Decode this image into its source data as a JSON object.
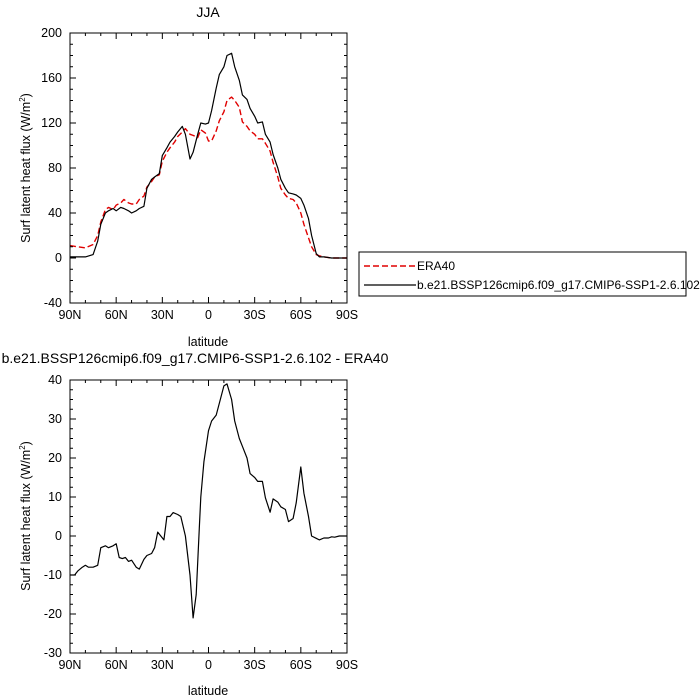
{
  "chart_data": [
    {
      "type": "line",
      "title": "JJA",
      "xlabel": "latitude",
      "ylabel": "Surf latent heat flux (W/m",
      "ylabel_sup": "2",
      "ylabel_close": ")",
      "xlim": [
        90,
        -90
      ],
      "ylim": [
        -40,
        200
      ],
      "xticks": [
        90,
        60,
        30,
        0,
        -30,
        -60,
        -90
      ],
      "xtick_labels": [
        "90N",
        "60N",
        "30N",
        "0",
        "30S",
        "60S",
        "90S"
      ],
      "yticks": [
        -40,
        0,
        40,
        80,
        120,
        160,
        200
      ],
      "ytick_labels": [
        "-40",
        "0",
        "40",
        "80",
        "120",
        "160",
        "200"
      ],
      "legend_position": "right",
      "x": [
        90,
        85,
        80,
        75,
        72,
        70,
        67,
        65,
        62,
        60,
        57,
        55,
        52,
        50,
        47,
        45,
        42,
        40,
        37,
        35,
        32,
        30,
        27,
        25,
        22,
        20,
        17,
        15,
        12,
        10,
        7,
        5,
        2,
        0,
        -2,
        -5,
        -7,
        -10,
        -12,
        -15,
        -17,
        -20,
        -22,
        -25,
        -27,
        -30,
        -32,
        -35,
        -37,
        -40,
        -42,
        -45,
        -47,
        -50,
        -52,
        -55,
        -57,
        -60,
        -62,
        -65,
        -67,
        -70,
        -72,
        -75,
        -80,
        -85,
        -90
      ],
      "series": [
        {
          "name": "ERA40",
          "color": "#e00000",
          "dash": "dashed",
          "values": [
            11,
            10,
            9,
            12,
            20,
            32,
            43,
            45,
            43,
            47,
            49,
            52,
            49,
            48,
            48,
            52,
            55,
            63,
            68,
            72,
            74,
            86,
            94,
            98,
            103,
            108,
            112,
            115,
            110,
            109,
            107,
            114,
            111,
            104,
            104,
            113,
            122,
            130,
            140,
            143,
            140,
            134,
            121,
            117,
            113,
            110,
            106,
            106,
            102,
            95,
            85,
            72,
            62,
            56,
            53,
            52,
            49,
            40,
            30,
            18,
            10,
            3,
            2,
            1,
            0,
            0,
            0
          ]
        },
        {
          "name": "b.e21.BSSP126cmip6.f09_g17.CMIP6-SSP1-2.6.102",
          "color": "#000000",
          "dash": "solid",
          "values": [
            1,
            1,
            1,
            3,
            15,
            30,
            40,
            42,
            44,
            42,
            45,
            44,
            42,
            40,
            42,
            44,
            46,
            62,
            70,
            72,
            75,
            91,
            98,
            103,
            108,
            112,
            117,
            110,
            88,
            94,
            110,
            120,
            119,
            120,
            131,
            151,
            163,
            170,
            180,
            182,
            170,
            158,
            145,
            141,
            133,
            126,
            120,
            121,
            110,
            103,
            92,
            80,
            70,
            62,
            58,
            57,
            56,
            53,
            47,
            35,
            20,
            4,
            1,
            1,
            0,
            0,
            0
          ]
        }
      ]
    },
    {
      "type": "line",
      "title": "b.e21.BSSP126cmip6.f09_g17.CMIP6-SSP1-2.6.102 - ERA40",
      "xlabel": "latitude",
      "ylabel": "Surf latent heat flux (W/m",
      "ylabel_sup": "2",
      "ylabel_close": ")",
      "xlim": [
        90,
        -90
      ],
      "ylim": [
        -30,
        40
      ],
      "xticks": [
        90,
        60,
        30,
        0,
        -30,
        -60,
        -90
      ],
      "xtick_labels": [
        "90N",
        "60N",
        "30N",
        "0",
        "30S",
        "60S",
        "90S"
      ],
      "yticks": [
        -30,
        -20,
        -10,
        0,
        10,
        20,
        30,
        40
      ],
      "ytick_labels": [
        "-30",
        "-20",
        "-10",
        "0",
        "10",
        "20",
        "30",
        "40"
      ],
      "x": [
        90,
        87,
        85,
        82,
        80,
        78,
        75,
        72,
        70,
        67,
        65,
        62,
        60,
        58,
        56,
        54,
        52,
        50,
        47,
        45,
        42,
        40,
        37,
        35,
        33,
        31,
        29,
        27,
        25,
        23,
        20,
        18,
        15,
        12,
        10,
        8,
        6,
        5,
        3,
        0,
        -2,
        -5,
        -7,
        -10,
        -12,
        -15,
        -17,
        -20,
        -22,
        -25,
        -27,
        -30,
        -32,
        -35,
        -37,
        -40,
        -42,
        -45,
        -47,
        -50,
        -52,
        -55,
        -57,
        -60,
        -62,
        -65,
        -67,
        -70,
        -72,
        -75,
        -78,
        -80,
        -82,
        -85,
        -88,
        -90
      ],
      "series": [
        {
          "name": "",
          "color": "#000000",
          "dash": "solid",
          "values": [
            -10,
            -10,
            -9,
            -8,
            -7.5,
            -8,
            -8,
            -7.5,
            -3,
            -2.5,
            -3,
            -2.5,
            -2,
            -5.5,
            -5.8,
            -5.5,
            -6.5,
            -6.2,
            -8,
            -8.5,
            -6,
            -5,
            -4.5,
            -3,
            1,
            0,
            -1,
            5,
            5,
            6,
            5.5,
            5,
            0,
            -10,
            -21,
            -15,
            2,
            10,
            19,
            27,
            29.5,
            31,
            34,
            38.5,
            39,
            35,
            29.5,
            25,
            23,
            20,
            16,
            15,
            14,
            14,
            9.8,
            6.1,
            9.5,
            8.7,
            7.5,
            6.8,
            3.7,
            4.5,
            8.5,
            17.7,
            11,
            5,
            0,
            -0.6,
            -1,
            -0.5,
            -0.5,
            -0.2,
            -0.3,
            0,
            0,
            0
          ]
        }
      ]
    }
  ]
}
